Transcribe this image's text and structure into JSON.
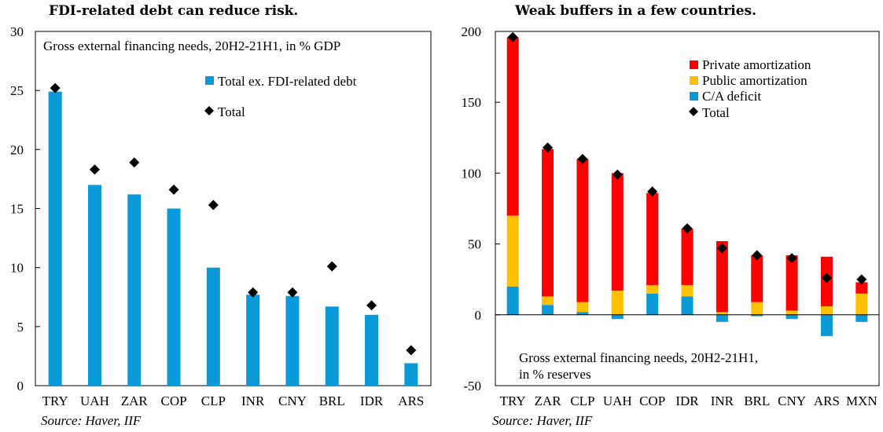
{
  "chart_data": [
    {
      "type": "bar",
      "title": "FDI-related debt can reduce risk.",
      "subtitle": "Gross external financing needs, 20H2-21H1, in % GDP",
      "source": "Source: Haver, IIF",
      "categories": [
        "TRY",
        "UAH",
        "ZAR",
        "COP",
        "CLP",
        "INR",
        "CNY",
        "BRL",
        "IDR",
        "ARS"
      ],
      "ylim": [
        0,
        30
      ],
      "yticks": [
        0,
        5,
        10,
        15,
        20,
        25,
        30
      ],
      "legend_placement": "top-right",
      "grid": false,
      "series": [
        {
          "name": "Total ex. FDI-related debt",
          "kind": "bar",
          "color": "#0a9ad8",
          "values": [
            24.9,
            17.0,
            16.2,
            15.0,
            10.0,
            7.7,
            7.6,
            6.7,
            6.0,
            1.9
          ]
        },
        {
          "name": "Total",
          "kind": "marker",
          "color": "#000000",
          "values": [
            25.2,
            18.3,
            18.9,
            16.6,
            15.3,
            7.9,
            7.9,
            10.1,
            6.8,
            3.0
          ]
        }
      ]
    },
    {
      "type": "bar",
      "title": "Weak buffers in a few countries.",
      "annotation": [
        "Gross external financing needs, 20H2-21H1,",
        "in % reserves"
      ],
      "source": "Source: Haver, IIF",
      "categories": [
        "TRY",
        "ZAR",
        "CLP",
        "UAH",
        "COP",
        "IDR",
        "INR",
        "BRL",
        "CNY",
        "ARS",
        "MXN"
      ],
      "ylim": [
        -50,
        200
      ],
      "yticks": [
        -50,
        0,
        50,
        100,
        150,
        200
      ],
      "legend_placement": "top-right",
      "grid": false,
      "stacked": true,
      "series": [
        {
          "name": "Private amortization",
          "kind": "bar",
          "color": "#ff0000",
          "values": [
            126,
            104,
            101,
            83,
            65,
            40,
            50,
            33,
            39,
            35,
            8
          ]
        },
        {
          "name": "Public amortization",
          "kind": "bar",
          "color": "#ffc000",
          "values": [
            50,
            6,
            7,
            17,
            6,
            8,
            2,
            9,
            3,
            6,
            15
          ]
        },
        {
          "name": "C/A deficit",
          "kind": "bar",
          "color": "#0a9ad8",
          "values": [
            20,
            7,
            2,
            -3,
            15,
            13,
            -5,
            -1,
            -3,
            -15,
            -5
          ]
        },
        {
          "name": "Total",
          "kind": "marker",
          "color": "#000000",
          "values": [
            196,
            118,
            110,
            99,
            87,
            61,
            47,
            42,
            40,
            26,
            25
          ]
        }
      ]
    }
  ]
}
